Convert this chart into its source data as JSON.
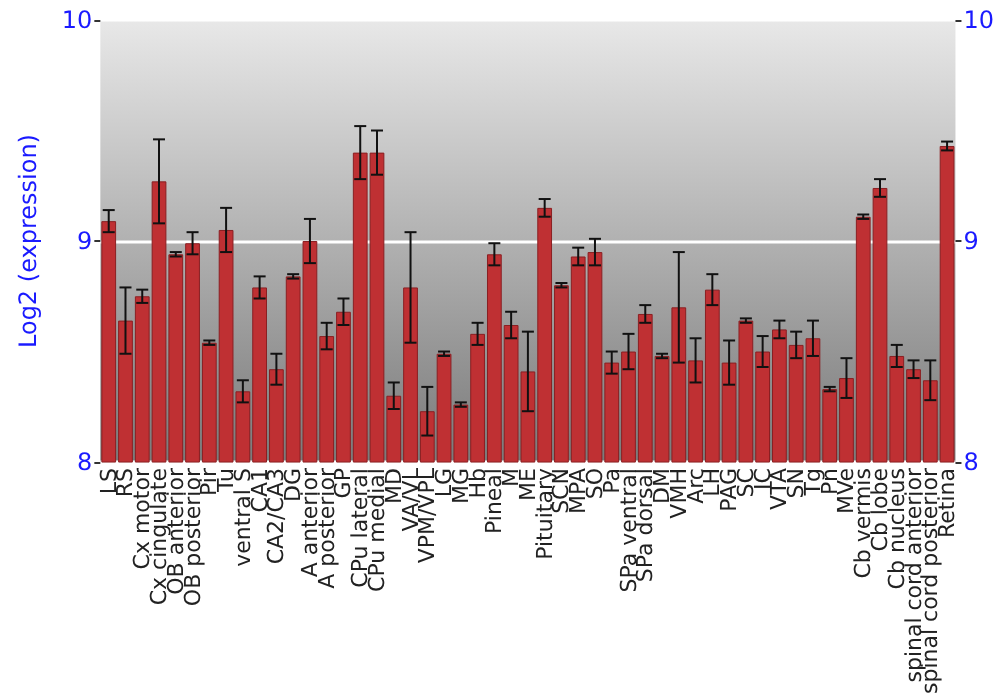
{
  "chart_data": {
    "type": "bar",
    "ylabel": "Log2 (expression)",
    "categories": [
      "LS",
      "RS",
      "Cx motor",
      "Cx cingulate",
      "OB anterior",
      "OB posterior",
      "Pir",
      "Tu",
      "ventral S",
      "CA1",
      "CA2/CA3",
      "DG",
      "A anterior",
      "A posterior",
      "GP",
      "CPu lateral",
      "CPu medial",
      "MD",
      "VA/VL",
      "VPM/VPL",
      "LG",
      "MG",
      "Hb",
      "Pineal",
      "M",
      "ME",
      "Pituitary",
      "SCN",
      "MPA",
      "SO",
      "Pa",
      "SPa ventral",
      "SPa dorsal",
      "DM",
      "VMH",
      "Arc",
      "LH",
      "PAG",
      "SC",
      "IC",
      "VTA",
      "SN",
      "Tg",
      "Pn",
      "MVe",
      "Cb vermis",
      "Cb lobe",
      "Cb nucleus",
      "spinal cord anterior",
      "spinal cord posterior",
      "Retina"
    ],
    "values": [
      9.09,
      8.64,
      8.75,
      9.27,
      8.94,
      8.99,
      8.54,
      9.05,
      8.32,
      8.79,
      8.42,
      8.84,
      9.0,
      8.57,
      8.68,
      9.4,
      9.4,
      8.3,
      8.79,
      8.23,
      8.49,
      8.26,
      8.58,
      8.94,
      8.62,
      8.41,
      9.15,
      8.8,
      8.93,
      8.95,
      8.45,
      8.5,
      8.67,
      8.48,
      8.7,
      8.46,
      8.78,
      8.45,
      8.64,
      8.5,
      8.6,
      8.53,
      8.56,
      8.33,
      8.38,
      9.11,
      9.24,
      8.48,
      8.42,
      8.37,
      9.43
    ],
    "errors": [
      0.05,
      0.15,
      0.03,
      0.19,
      0.01,
      0.05,
      0.01,
      0.1,
      0.05,
      0.05,
      0.07,
      0.01,
      0.1,
      0.06,
      0.06,
      0.12,
      0.1,
      0.06,
      0.25,
      0.11,
      0.01,
      0.01,
      0.05,
      0.05,
      0.06,
      0.18,
      0.04,
      0.01,
      0.04,
      0.06,
      0.05,
      0.08,
      0.04,
      0.01,
      0.25,
      0.1,
      0.07,
      0.1,
      0.01,
      0.07,
      0.04,
      0.06,
      0.08,
      0.01,
      0.09,
      0.01,
      0.04,
      0.05,
      0.04,
      0.09,
      0.02
    ],
    "color": "#bf3033",
    "ylim": [
      8,
      10
    ],
    "yticks": [
      8,
      9,
      10
    ],
    "y2lim": [
      8,
      10
    ],
    "y2ticks": [
      8,
      9,
      10
    ],
    "grid": "y"
  }
}
